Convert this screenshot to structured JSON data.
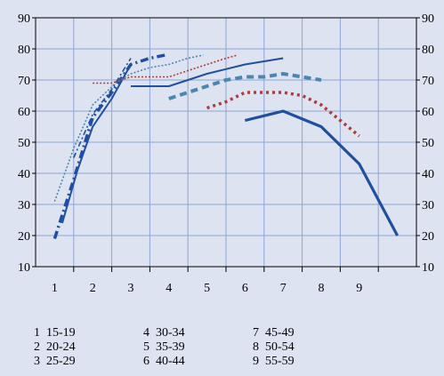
{
  "chart_data": {
    "type": "line",
    "title": "",
    "xlabel": "",
    "ylabel": "",
    "x_ticks": [
      "1",
      "2",
      "3",
      "4",
      "5",
      "6",
      "7",
      "8",
      "9"
    ],
    "y_ticks": [
      10,
      20,
      30,
      40,
      50,
      60,
      70,
      80,
      90
    ],
    "ylim": [
      10,
      90
    ],
    "xlim": [
      0.5,
      10.5
    ],
    "grid": true,
    "secondary_y_axis": true,
    "series": [
      {
        "color": "#1f4fa0",
        "style": "dashdot-heavy",
        "points": [
          [
            1.0,
            19
          ],
          [
            1.5,
            38
          ],
          [
            2.0,
            58
          ],
          [
            2.5,
            66
          ],
          [
            3.0,
            75
          ],
          [
            3.5,
            77
          ],
          [
            3.9,
            78
          ]
        ]
      },
      {
        "color": "#1f4fa0",
        "style": "solid-medium",
        "points": [
          [
            1.2,
            24
          ],
          [
            1.6,
            41
          ],
          [
            2.0,
            55
          ],
          [
            2.5,
            64
          ],
          [
            3.0,
            75
          ]
        ]
      },
      {
        "color": "#1f4fa0",
        "style": "dashdot-thin",
        "points": [
          [
            1.5,
            45
          ],
          [
            2.0,
            59
          ],
          [
            2.5,
            67
          ],
          [
            3.0,
            77
          ]
        ]
      },
      {
        "color": "#4a86b0",
        "style": "dotted-thin",
        "points": [
          [
            1.0,
            31
          ],
          [
            1.5,
            48
          ],
          [
            2.0,
            62
          ],
          [
            2.6,
            69
          ],
          [
            3.0,
            72
          ],
          [
            3.5,
            74
          ],
          [
            4.0,
            75
          ],
          [
            4.5,
            77
          ],
          [
            4.9,
            78
          ]
        ]
      },
      {
        "color": "#b03a3a",
        "style": "dotted-thin",
        "points": [
          [
            2.0,
            69
          ],
          [
            2.5,
            69
          ],
          [
            3.0,
            71
          ],
          [
            3.5,
            71
          ],
          [
            4.0,
            71
          ],
          [
            4.5,
            73
          ],
          [
            5.0,
            75
          ],
          [
            5.5,
            77
          ],
          [
            5.8,
            78
          ]
        ]
      },
      {
        "color": "#1f4fa0",
        "style": "solid-medium",
        "points": [
          [
            3.0,
            68
          ],
          [
            4.0,
            68
          ],
          [
            4.5,
            70
          ],
          [
            5.0,
            72
          ],
          [
            6.0,
            75
          ],
          [
            7.0,
            77
          ]
        ]
      },
      {
        "color": "#4a86b0",
        "style": "dashed-heavy",
        "points": [
          [
            4.0,
            64
          ],
          [
            4.5,
            66
          ],
          [
            5.0,
            68
          ],
          [
            5.5,
            70
          ],
          [
            6.0,
            71
          ],
          [
            6.5,
            71
          ],
          [
            7.0,
            72
          ],
          [
            7.5,
            71
          ],
          [
            8.0,
            70
          ]
        ]
      },
      {
        "color": "#b03a3a",
        "style": "dotted-heavy",
        "points": [
          [
            5.0,
            61
          ],
          [
            5.5,
            63
          ],
          [
            6.0,
            66
          ],
          [
            6.5,
            66
          ],
          [
            7.0,
            66
          ],
          [
            7.5,
            65
          ],
          [
            8.0,
            62
          ],
          [
            8.5,
            57
          ],
          [
            9.0,
            52
          ]
        ]
      },
      {
        "color": "#1f4fa0",
        "style": "solid-heavy",
        "points": [
          [
            6.0,
            57
          ],
          [
            7.0,
            60
          ],
          [
            8.0,
            55
          ],
          [
            9.0,
            43
          ],
          [
            10.0,
            20
          ]
        ]
      }
    ],
    "legend": [
      "1  15-19",
      "2  20-24",
      "3  25-29",
      "4  30-34",
      "5  35-39",
      "6  40-44",
      "7  45-49",
      "8  50-54",
      "9  55-59"
    ]
  }
}
